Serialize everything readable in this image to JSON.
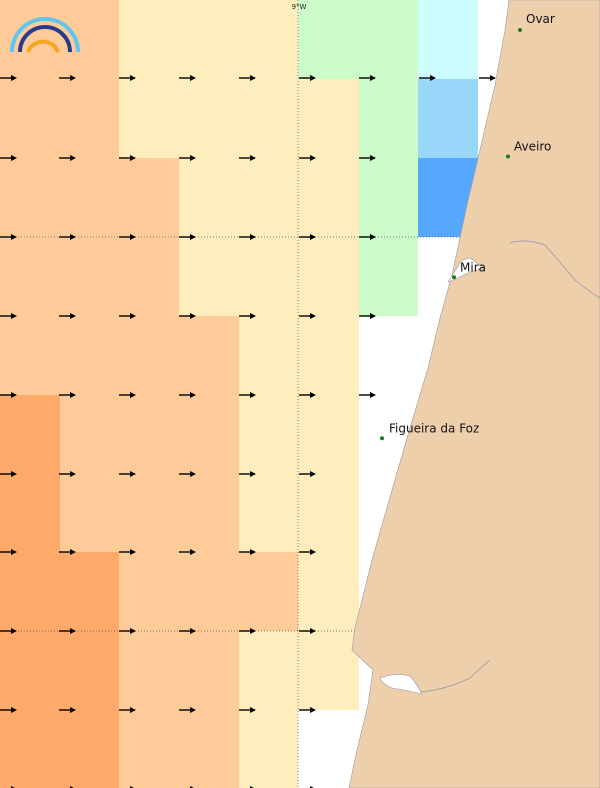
{
  "map": {
    "grid_label": "9°W",
    "cities": [
      {
        "name": "Ovar",
        "lat": 40.86,
        "lon": -8.63
      },
      {
        "name": "Aveiro",
        "lat": 40.64,
        "lon": -8.65
      },
      {
        "name": "Mira",
        "lat": 40.43,
        "lon": -8.74
      },
      {
        "name": "Figueira da Foz",
        "lat": 40.15,
        "lon": -8.86
      }
    ],
    "colors": {
      "land": "#eecfab",
      "land_outline": "#9a9aa8",
      "sea_missing": "#ffffff",
      "city_dot": "#1a7a1a",
      "arrow": "#000000",
      "grid_line": "#555555"
    },
    "scale_colors": [
      "#56a8ff",
      "#98d6fa",
      "#cdfdfe",
      "#cdfccb",
      "#ffedbd",
      "#ffcc99",
      "#ffa96a"
    ],
    "arrow_direction": "east",
    "logo": "rainbow-logo"
  }
}
